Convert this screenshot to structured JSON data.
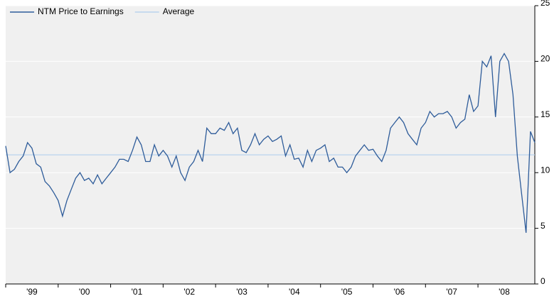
{
  "chart_data": {
    "type": "line",
    "categories": [
      "'99",
      null,
      null,
      null,
      null,
      null,
      null,
      null,
      null,
      null,
      null,
      null,
      "'00",
      null,
      null,
      null,
      null,
      null,
      null,
      null,
      null,
      null,
      null,
      null,
      "'01",
      null,
      null,
      null,
      null,
      null,
      null,
      null,
      null,
      null,
      null,
      null,
      "'02",
      null,
      null,
      null,
      null,
      null,
      null,
      null,
      null,
      null,
      null,
      null,
      "'03",
      null,
      null,
      null,
      null,
      null,
      null,
      null,
      null,
      null,
      null,
      null,
      "'04",
      null,
      null,
      null,
      null,
      null,
      null,
      null,
      null,
      null,
      null,
      null,
      "'05",
      null,
      null,
      null,
      null,
      null,
      null,
      null,
      null,
      null,
      null,
      null,
      "'06",
      null,
      null,
      null,
      null,
      null,
      null,
      null,
      null,
      null,
      null,
      null,
      "'07",
      null,
      null,
      null,
      null,
      null,
      null,
      null,
      null,
      null,
      null,
      null,
      "'08",
      null,
      null,
      null,
      null,
      null,
      null,
      null,
      null,
      null,
      null,
      null,
      null,
      null
    ],
    "series": [
      {
        "name": "NTM Price to Earnings",
        "color": "#2e5c9a",
        "values": [
          12.4,
          10,
          10.3,
          11,
          11.5,
          12.7,
          12.2,
          10.8,
          10.5,
          9.2,
          8.8,
          8.2,
          7.5,
          6.1,
          7.5,
          8.5,
          9.5,
          10,
          9.3,
          9.5,
          9,
          9.8,
          9,
          9.5,
          10,
          10.5,
          11.2,
          11.2,
          11,
          12,
          13.2,
          12.5,
          11,
          11,
          12.5,
          11.5,
          12,
          11.5,
          10.5,
          11.5,
          10,
          9.3,
          10.5,
          11,
          12,
          11,
          14,
          13.5,
          13.5,
          14,
          13.8,
          14.5,
          13.5,
          14,
          12,
          11.8,
          12.5,
          13.5,
          12.5,
          13,
          13.3,
          12.8,
          13,
          13.3,
          11.5,
          12.5,
          11.2,
          11.3,
          10.5,
          12,
          11,
          12,
          12.2,
          12.5,
          11,
          11.3,
          10.5,
          10.5,
          10,
          10.5,
          11.5,
          12,
          12.5,
          12,
          12.1,
          11.5,
          11,
          12,
          14,
          14.5,
          15,
          14.5,
          13.5,
          13,
          12.5,
          14,
          14.5,
          15.5,
          15,
          15.3,
          15.3,
          15.5,
          15,
          14,
          14.5,
          14.8,
          17,
          15.5,
          16,
          20,
          19.5,
          20.5,
          15,
          20,
          20.7,
          20,
          17,
          11.5,
          8,
          4.6,
          13.7,
          12.7
        ]
      },
      {
        "name": "Average",
        "color": "#b9d3ee",
        "values": [
          11.6,
          11.6,
          11.6,
          11.6,
          11.6,
          11.6,
          11.6,
          11.6,
          11.6,
          11.6,
          11.6,
          11.6,
          11.6,
          11.6,
          11.6,
          11.6,
          11.6,
          11.6,
          11.6,
          11.6,
          11.6,
          11.6,
          11.6,
          11.6,
          11.6,
          11.6,
          11.6,
          11.6,
          11.6,
          11.6,
          11.6,
          11.6,
          11.6,
          11.6,
          11.6,
          11.6,
          11.6,
          11.6,
          11.6,
          11.6,
          11.6,
          11.6,
          11.6,
          11.6,
          11.6,
          11.6,
          11.6,
          11.6,
          11.6,
          11.6,
          11.6,
          11.6,
          11.6,
          11.6,
          11.6,
          11.6,
          11.6,
          11.6,
          11.6,
          11.6,
          11.6,
          11.6,
          11.6,
          11.6,
          11.6,
          11.6,
          11.6,
          11.6,
          11.6,
          11.6,
          11.6,
          11.6,
          11.6,
          11.6,
          11.6,
          11.6,
          11.6,
          11.6,
          11.6,
          11.6,
          11.6,
          11.6,
          11.6,
          11.6,
          11.6,
          11.6,
          11.6,
          11.6,
          11.6,
          11.6,
          11.6,
          11.6,
          11.6,
          11.6,
          11.6,
          11.6,
          11.6,
          11.6,
          11.6,
          11.6,
          11.6,
          11.6,
          11.6,
          11.6,
          11.6,
          11.6,
          11.6,
          11.6,
          11.6,
          11.6,
          11.6,
          11.6,
          11.6,
          11.6,
          11.6,
          11.6,
          11.6,
          11.6,
          11.6,
          11.6,
          11.6,
          11.6
        ]
      }
    ],
    "ylim": [
      0,
      25
    ],
    "yticks": [
      0,
      5,
      10,
      15,
      20,
      25
    ],
    "grid": true,
    "legend": "top-left"
  }
}
